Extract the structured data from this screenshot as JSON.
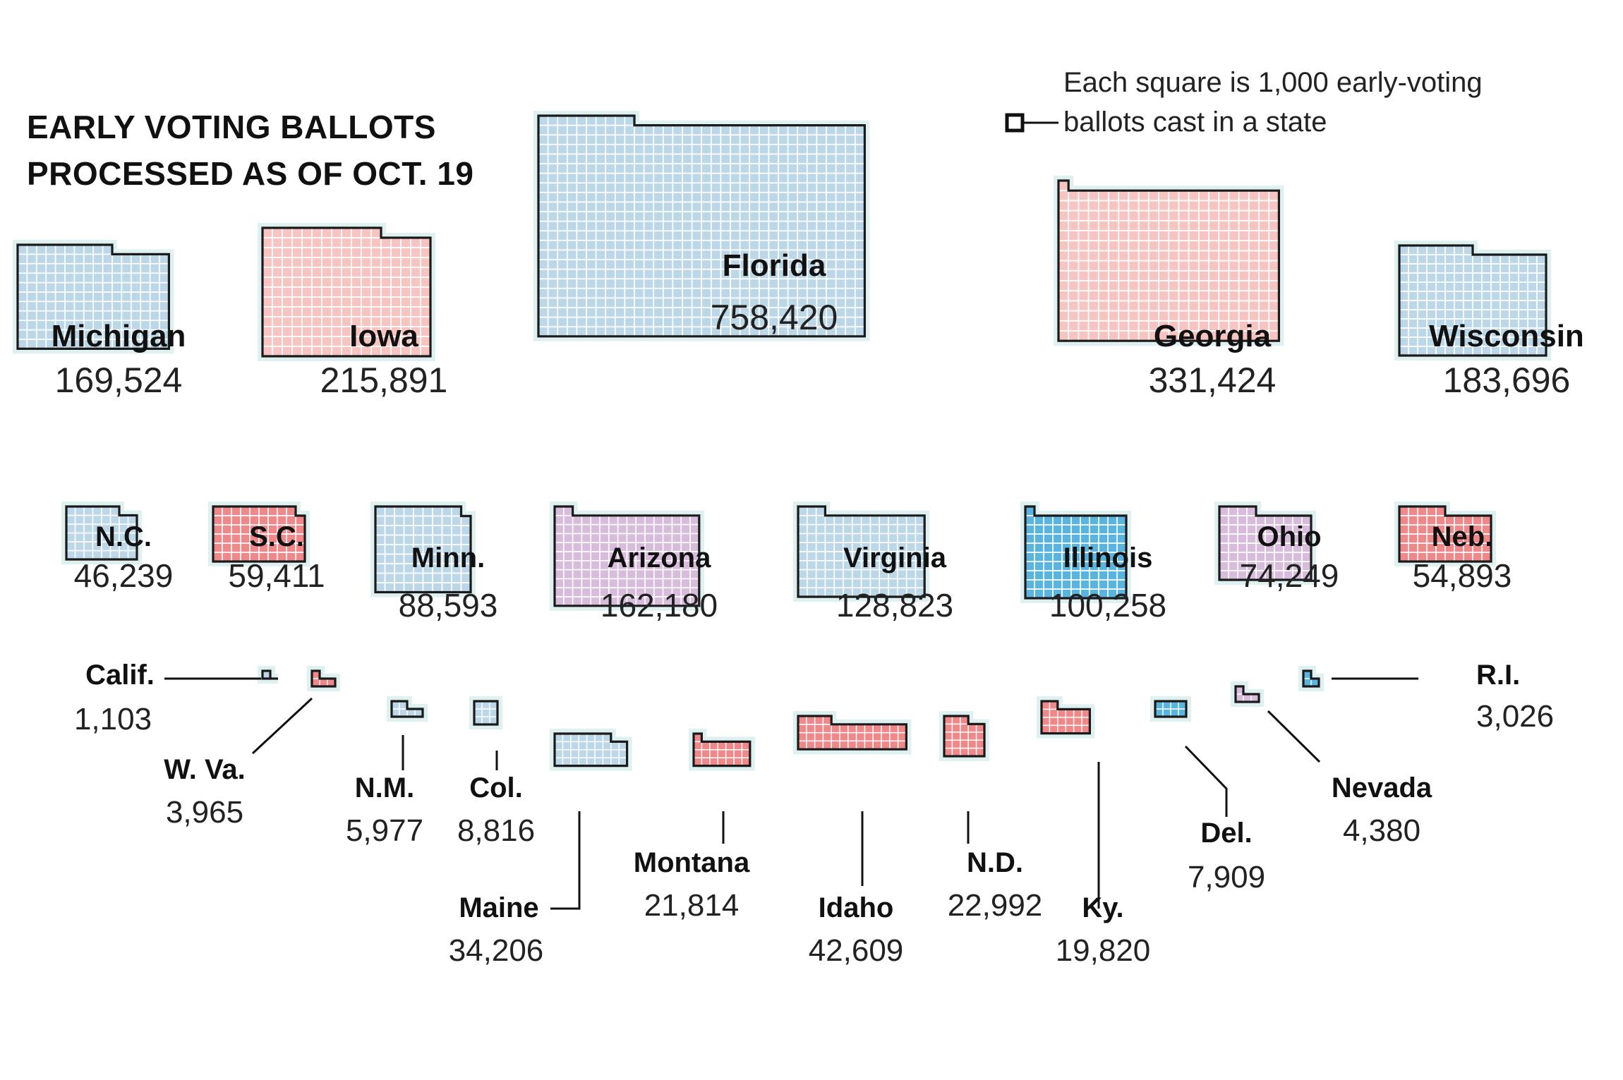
{
  "title_lines": [
    "EARLY VOTING BALLOTS",
    "PROCESSED AS OF OCT. 19"
  ],
  "legend_note_lines": [
    "Each square is 1,000 early-voting",
    "ballots cast in a state"
  ],
  "colors": {
    "light-blue": "#bcd8e8",
    "bright-blue": "#5ab4e0",
    "light-red": "#f8c4c2",
    "red": "#f0888a",
    "purple": "#d8bcdc",
    "outline": "#1a1a1a",
    "halo": "#dff0f0"
  },
  "chart_data": {
    "type": "waffle",
    "unit": "Each square is 1,000 early-voting ballots cast in a state",
    "states": [
      {
        "name": "Florida",
        "value": "758,420",
        "ballots": 758420,
        "color": "light-blue"
      },
      {
        "name": "Georgia",
        "value": "331,424",
        "ballots": 331424,
        "color": "light-red"
      },
      {
        "name": "Iowa",
        "value": "215,891",
        "ballots": 215891,
        "color": "light-red"
      },
      {
        "name": "Wisconsin",
        "value": "183,696",
        "ballots": 183696,
        "color": "light-blue"
      },
      {
        "name": "Michigan",
        "value": "169,524",
        "ballots": 169524,
        "color": "light-blue"
      },
      {
        "name": "Arizona",
        "value": "162,180",
        "ballots": 162180,
        "color": "purple"
      },
      {
        "name": "Virginia",
        "value": "128,823",
        "ballots": 128823,
        "color": "light-blue"
      },
      {
        "name": "Illinois",
        "value": "100,258",
        "ballots": 100258,
        "color": "bright-blue"
      },
      {
        "name": "Minn.",
        "value": "88,593",
        "ballots": 88593,
        "color": "light-blue"
      },
      {
        "name": "Ohio",
        "value": "74,249",
        "ballots": 74249,
        "color": "purple"
      },
      {
        "name": "S.C.",
        "value": "59,411",
        "ballots": 59411,
        "color": "red"
      },
      {
        "name": "Neb.",
        "value": "54,893",
        "ballots": 54893,
        "color": "red"
      },
      {
        "name": "N.C.",
        "value": "46,239",
        "ballots": 46239,
        "color": "light-blue"
      },
      {
        "name": "Idaho",
        "value": "42,609",
        "ballots": 42609,
        "color": "red"
      },
      {
        "name": "Maine",
        "value": "34,206",
        "ballots": 34206,
        "color": "light-blue"
      },
      {
        "name": "N.D.",
        "value": "22,992",
        "ballots": 22992,
        "color": "red"
      },
      {
        "name": "Montana",
        "value": "21,814",
        "ballots": 21814,
        "color": "red"
      },
      {
        "name": "Ky.",
        "value": "19,820",
        "ballots": 19820,
        "color": "red"
      },
      {
        "name": "Col.",
        "value": "8,816",
        "ballots": 8816,
        "color": "light-blue"
      },
      {
        "name": "Del.",
        "value": "7,909",
        "ballots": 7909,
        "color": "bright-blue"
      },
      {
        "name": "N.M.",
        "value": "5,977",
        "ballots": 5977,
        "color": "light-blue"
      },
      {
        "name": "Nevada",
        "value": "4,380",
        "ballots": 4380,
        "color": "purple"
      },
      {
        "name": "W. Va.",
        "value": "3,965",
        "ballots": 3965,
        "color": "red"
      },
      {
        "name": "R.I.",
        "value": "3,026",
        "ballots": 3026,
        "color": "bright-blue"
      },
      {
        "name": "Calif.",
        "value": "1,103",
        "ballots": 1103,
        "color": "light-blue"
      }
    ]
  }
}
